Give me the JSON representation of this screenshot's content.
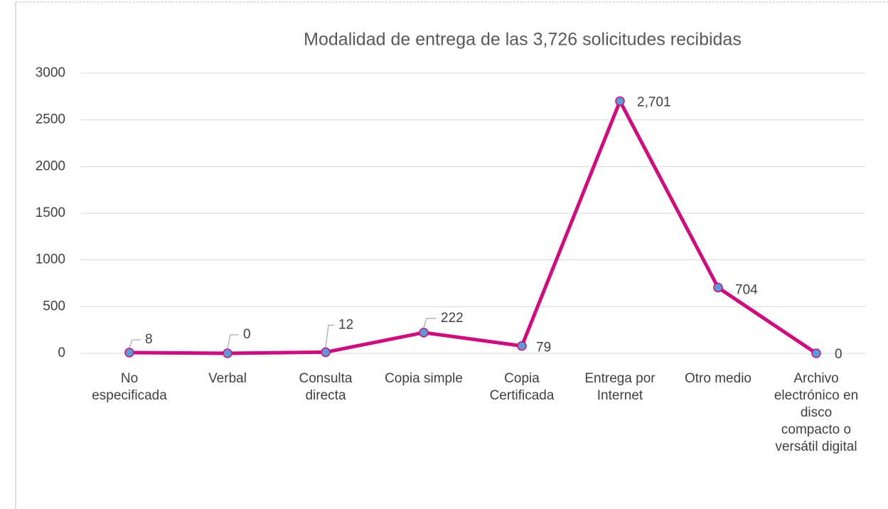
{
  "chart_data": {
    "type": "line",
    "title": "Modalidad de entrega de las 3,726 solicitudes recibidas",
    "categories": [
      "No especificada",
      "Verbal",
      "Consulta directa",
      "Copia simple",
      "Copia Certificada",
      "Entrega por Internet",
      "Otro medio",
      "Archivo electrónico en disco compacto o versátil digital"
    ],
    "series": [
      {
        "name": "Solicitudes",
        "color": "#cc0e7e",
        "values": [
          8,
          0,
          12,
          222,
          79,
          2701,
          704,
          0
        ],
        "value_labels": [
          "8",
          "0",
          "12",
          "222",
          "79",
          "2,701",
          "704",
          "0"
        ]
      }
    ],
    "marker_color": "#5b9bd5",
    "ylim": [
      0,
      3000
    ],
    "yticks": [
      0,
      500,
      1000,
      1500,
      2000,
      2500,
      3000
    ],
    "grid": true
  }
}
